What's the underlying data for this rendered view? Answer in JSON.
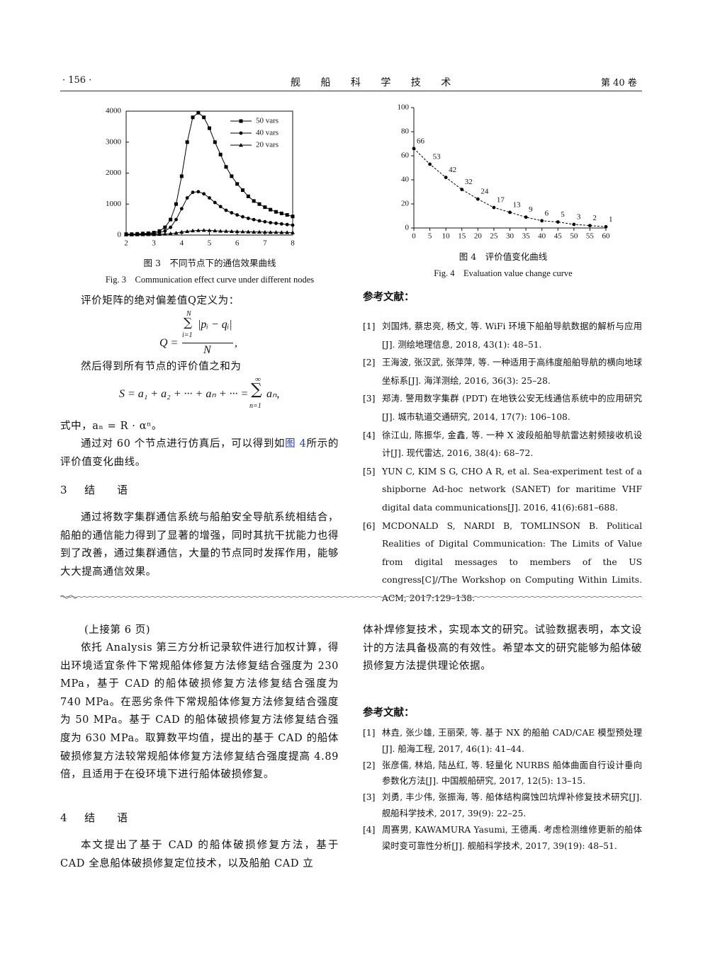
{
  "header": {
    "page_number": "· 156 ·",
    "journal": "舰 船 科 学 技 术",
    "volume": "第 40 卷"
  },
  "chart_data": [
    {
      "type": "line",
      "caption_cn": "图 3　不同节点下的通信效果曲线",
      "caption_en": "Fig. 3　Communication effect curve under different nodes",
      "x": [
        2.0,
        2.2,
        2.4,
        2.6,
        2.8,
        3.0,
        3.2,
        3.4,
        3.6,
        3.8,
        4.0,
        4.2,
        4.4,
        4.6,
        4.8,
        5.0,
        5.2,
        5.4,
        5.6,
        5.8,
        6.0,
        6.2,
        6.4,
        6.6,
        6.8,
        7.0,
        7.2,
        7.4,
        7.6,
        7.8,
        8.0
      ],
      "series": [
        {
          "name": "50 vars",
          "color": "#000000",
          "marker": "square",
          "values": [
            30,
            30,
            40,
            50,
            60,
            80,
            130,
            250,
            500,
            1000,
            1900,
            3000,
            3800,
            3950,
            3800,
            3450,
            3000,
            2600,
            2200,
            1900,
            1650,
            1450,
            1250,
            1100,
            1000,
            900,
            820,
            750,
            700,
            650,
            600
          ]
        },
        {
          "name": "40 vars",
          "color": "#000000",
          "marker": "circle",
          "values": [
            20,
            20,
            25,
            30,
            40,
            50,
            80,
            130,
            250,
            500,
            850,
            1200,
            1380,
            1400,
            1330,
            1200,
            1050,
            920,
            800,
            720,
            650,
            590,
            540,
            500,
            460,
            430,
            400,
            380,
            360,
            340,
            320
          ]
        },
        {
          "name": "20 vars",
          "color": "#000000",
          "marker": "triangle",
          "values": [
            10,
            10,
            12,
            15,
            18,
            20,
            25,
            35,
            50,
            70,
            100,
            120,
            140,
            150,
            155,
            150,
            140,
            130,
            125,
            120,
            115,
            110,
            105,
            100,
            100,
            95,
            90,
            90,
            85,
            85,
            80
          ]
        }
      ],
      "xlim": [
        2,
        8
      ],
      "xticks": [
        2,
        3,
        4,
        5,
        6,
        7,
        8
      ],
      "ylim": [
        0,
        4000
      ],
      "yticks": [
        0,
        1000,
        2000,
        3000,
        4000
      ],
      "legend": "upper right",
      "frame": true
    },
    {
      "type": "line",
      "caption_cn": "图 4　评价值变化曲线",
      "caption_en": "Fig. 4　Evaluation value change curve",
      "x": [
        0,
        5,
        10,
        15,
        20,
        25,
        30,
        35,
        40,
        45,
        50,
        55,
        60
      ],
      "series": [
        {
          "color": "#000000",
          "marker": "circle",
          "line_style": "dashed",
          "data_labels": true,
          "values": [
            66,
            53,
            42,
            32,
            24,
            17,
            13,
            9,
            6,
            5,
            3,
            2,
            1
          ]
        }
      ],
      "xlim": [
        0,
        60
      ],
      "xticks": [
        0,
        5,
        10,
        15,
        20,
        25,
        30,
        35,
        40,
        45,
        50,
        55,
        60
      ],
      "ylim": [
        0,
        100
      ],
      "yticks": [
        0,
        20,
        40,
        60,
        80,
        100
      ],
      "frame": false
    }
  ],
  "upper_left": {
    "p1": "评价矩阵的绝对偏差值Q定义为：",
    "formula_q": {
      "lhs": "Q =",
      "sum_top": "N",
      "sum_symbol": "∑",
      "sum_bottom": "i=1",
      "numerator": "|pᵢ − qᵢ|",
      "denominator": "N",
      "tail": ","
    },
    "p2": "然后得到所有节点的评价值之和为",
    "formula_s": {
      "lhs": "S = a₁ + a₂ + ··· + aₙ + ··· =",
      "sum_top": "∞",
      "sum_symbol": "∑",
      "sum_bottom": "n=1",
      "tail": "aₙ,"
    },
    "p3": "式中，aₙ = R · αⁿ。",
    "p4": {
      "before": "通过对 60 个节点进行仿真后，可以得到如",
      "link": "图 4",
      "after": "所示的评价值变化曲线。"
    },
    "section": {
      "number": "3",
      "title": "结　语"
    },
    "p5": "通过将数字集群通信系统与船舶安全导航系统相结合，船舶的通信能力得到了显著的增强，同时其抗干扰能力也得到了改善，通过集群通信，大量的节点同时发挥作用，能够大大提高通信效果。"
  },
  "references_1": {
    "title": "参考文献：",
    "items": [
      {
        "label": "[1]",
        "text": "刘国炜, 蔡忠亮, 杨文, 等. WiFi 环境下船舶导航数据的解析与应用[J]. 测绘地理信息, 2018, 43(1): 48–51."
      },
      {
        "label": "[2]",
        "text": "王海波, 张汉武, 张萍萍, 等. 一种适用于高纬度船舶导航的横向地球坐标系[J]. 海洋测绘, 2016, 36(3): 25–28."
      },
      {
        "label": "[3]",
        "text": "郑涛. 警用数字集群 (PDT) 在地铁公安无线通信系统中的应用研究[J]. 城市轨道交通研究, 2014, 17(7): 106–108."
      },
      {
        "label": "[4]",
        "text": "徐江山, 陈振华, 金鑫, 等. 一种 X 波段船舶导航雷达射频接收机设计[J]. 现代雷达, 2016, 38(4): 68–72."
      },
      {
        "label": "[5]",
        "text": "YUN C, KIM S G, CHO A R, et al. Sea-experiment test of a shipborne Ad-hoc network (SANET) for maritime VHF digital data communications[J]. 2016, 41(6):681–688."
      },
      {
        "label": "[6]",
        "text": "MCDONALD S, NARDI B, TOMLINSON B. Political Realities of Digital Communication: The Limits of Value from digital messages to members of the US congress[C]//The Workshop on Computing Within Limits. ACM, 2017:129–138."
      }
    ]
  },
  "lower_left": {
    "continued": "(上接第 6 页)",
    "p1": "依托 Analysis 第三方分析记录软件进行加权计算，得出环境适宜条件下常规船体修复方法修复结合强度为 230 MPa，基于 CAD 的船体破损修复方法修复结合强度为 740 MPa。在恶劣条件下常规船体修复方法修复结合强度为 50 MPa。基于 CAD 的船体破损修复方法修复结合强度为 630 MPa。取算数平均值，提出的基于 CAD 的船体破损修复方法较常规船体修复方法修复结合强度提高 4.89 倍，且适用于在役环境下进行船体破损修复。",
    "section": {
      "number": "4",
      "title": "结　语"
    },
    "p2": "本文提出了基于 CAD 的船体破损修复方法，基于 CAD 全息船体破损修复定位技术，以及船舶 CAD 立"
  },
  "lower_right": {
    "p1": "体补焊修复技术，实现本文的研究。试验数据表明，本文设计的方法具备极高的有效性。希望本文的研究能够为船体破损修复方法提供理论依据。"
  },
  "references_2": {
    "title": "参考文献：",
    "items": [
      {
        "label": "[1]",
        "text": "林垚, 张少雄, 王丽荣, 等. 基于 NX 的船舶 CAD/CAE 模型预处理[J]. 船海工程, 2017, 46(1): 41–44."
      },
      {
        "label": "[2]",
        "text": "张彦儒, 林焰, 陆丛红, 等. 轻量化 NURBS 船体曲面自行设计垂向参数化方法[J]. 中国舰船研究, 2017, 12(5): 13–15."
      },
      {
        "label": "[3]",
        "text": "刘勇, 丰少伟, 张振海, 等. 船体结构腐蚀凹坑焊补修复技术研究[J]. 舰船科学技术, 2017, 39(9): 22–25."
      },
      {
        "label": "[4]",
        "text": "周赛男, KAWAMURA Yasumi, 王德禹. 考虑检测维修更新的船体梁时变可靠性分析[J]. 舰船科学技术, 2017, 39(19): 48–51."
      }
    ]
  }
}
